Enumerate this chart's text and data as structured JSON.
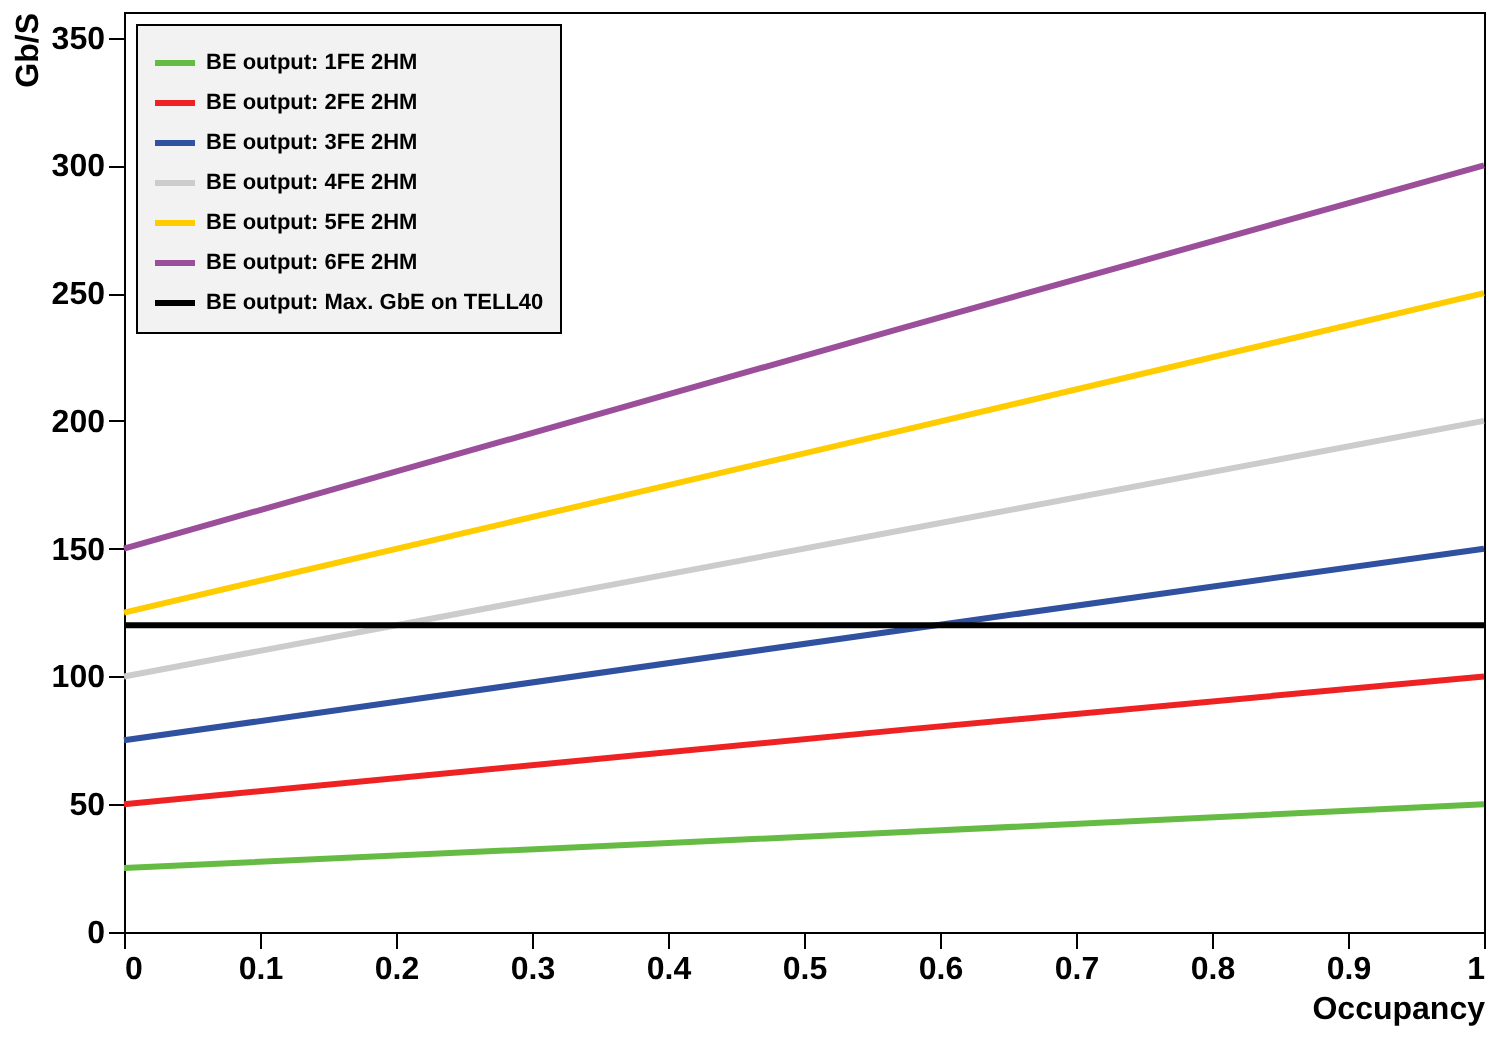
{
  "chart_data": {
    "type": "line",
    "xlabel": "Occupancy",
    "ylabel": "Gb/S",
    "x": [
      0,
      0.57,
      1
    ],
    "xlim": [
      0,
      1
    ],
    "xticks": [
      0,
      0.1,
      0.2,
      0.3,
      0.4,
      0.5,
      0.6,
      0.7,
      0.8,
      0.9,
      1
    ],
    "ylim": [
      0,
      360
    ],
    "yticks": [
      0,
      50,
      100,
      150,
      200,
      250,
      300,
      350
    ],
    "grid": false,
    "legend": "top left",
    "marker": "none",
    "line_style": "solid",
    "series": [
      {
        "name": "BE output: 1FE 2HM",
        "color": "#66bb44",
        "values": [
          25,
          39,
          50
        ]
      },
      {
        "name": "BE output: 2FE 2HM",
        "color": "#ee2222",
        "values": [
          50,
          79,
          100
        ]
      },
      {
        "name": "BE output: 3FE 2HM",
        "color": "#3050a0",
        "values": [
          75,
          118,
          150
        ]
      },
      {
        "name": "BE output: 4FE 2HM",
        "color": "#cccccc",
        "values": [
          100,
          157,
          200
        ]
      },
      {
        "name": "BE output: 5FE 2HM",
        "color": "#ffcc00",
        "values": [
          125,
          196,
          250
        ]
      },
      {
        "name": "BE output: 6FE 2HM",
        "color": "#9b4f9b",
        "values": [
          150,
          236,
          300
        ]
      },
      {
        "name": "BE output: Max. GbE on TELL40",
        "color": "#000000",
        "values": [
          120,
          120,
          120
        ]
      }
    ]
  }
}
